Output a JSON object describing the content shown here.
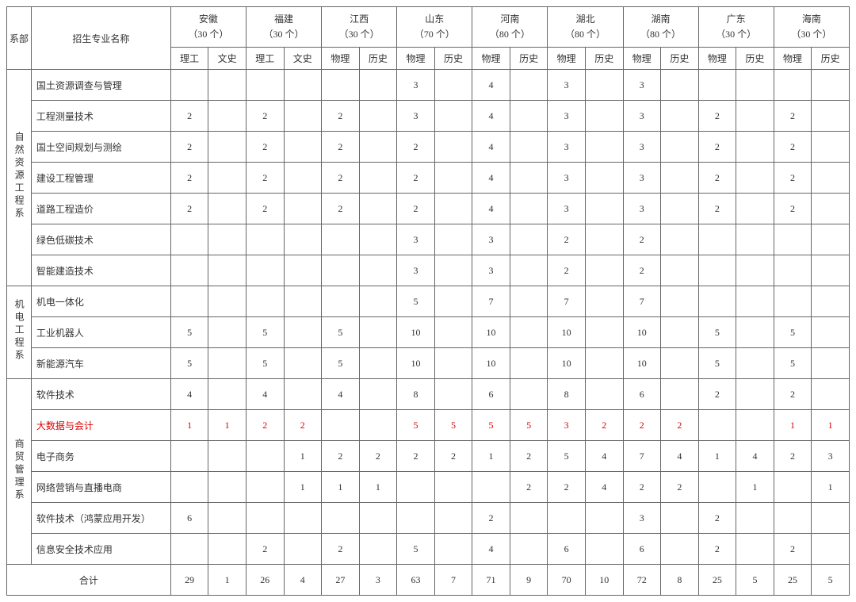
{
  "headers": {
    "dept": "系部",
    "major": "招生专业名称",
    "total": "合计",
    "provinces": [
      {
        "name": "安徽",
        "count": "（30 个）",
        "sub1": "理工",
        "sub2": "文史"
      },
      {
        "name": "福建",
        "count": "（30 个）",
        "sub1": "理工",
        "sub2": "文史"
      },
      {
        "name": "江西",
        "count": "（30 个）",
        "sub1": "物理",
        "sub2": "历史"
      },
      {
        "name": "山东",
        "count": "（70 个）",
        "sub1": "物理",
        "sub2": "历史"
      },
      {
        "name": "河南",
        "count": "（80 个）",
        "sub1": "物理",
        "sub2": "历史"
      },
      {
        "name": "湖北",
        "count": "（80 个）",
        "sub1": "物理",
        "sub2": "历史"
      },
      {
        "name": "湖南",
        "count": "（80 个）",
        "sub1": "物理",
        "sub2": "历史"
      },
      {
        "name": "广东",
        "count": "（30 个）",
        "sub1": "物理",
        "sub2": "历史"
      },
      {
        "name": "海南",
        "count": "（30 个）",
        "sub1": "物理",
        "sub2": "历史"
      }
    ]
  },
  "departments": [
    {
      "name": "自然资源工程系",
      "majors": [
        {
          "name": "国土资源调查与管理",
          "vals": [
            "",
            "",
            "",
            "",
            "",
            "",
            "3",
            "",
            "4",
            "",
            "3",
            "",
            "3",
            "",
            "",
            "",
            "",
            ""
          ]
        },
        {
          "name": "工程测量技术",
          "vals": [
            "2",
            "",
            "2",
            "",
            "2",
            "",
            "3",
            "",
            "4",
            "",
            "3",
            "",
            "3",
            "",
            "2",
            "",
            "2",
            ""
          ]
        },
        {
          "name": "国土空间规划与测绘",
          "vals": [
            "2",
            "",
            "2",
            "",
            "2",
            "",
            "2",
            "",
            "4",
            "",
            "3",
            "",
            "3",
            "",
            "2",
            "",
            "2",
            ""
          ]
        },
        {
          "name": "建设工程管理",
          "vals": [
            "2",
            "",
            "2",
            "",
            "2",
            "",
            "2",
            "",
            "4",
            "",
            "3",
            "",
            "3",
            "",
            "2",
            "",
            "2",
            ""
          ]
        },
        {
          "name": "道路工程造价",
          "vals": [
            "2",
            "",
            "2",
            "",
            "2",
            "",
            "2",
            "",
            "4",
            "",
            "3",
            "",
            "3",
            "",
            "2",
            "",
            "2",
            ""
          ]
        },
        {
          "name": "绿色低碳技术",
          "vals": [
            "",
            "",
            "",
            "",
            "",
            "",
            "3",
            "",
            "3",
            "",
            "2",
            "",
            "2",
            "",
            "",
            "",
            "",
            ""
          ]
        },
        {
          "name": "智能建造技术",
          "vals": [
            "",
            "",
            "",
            "",
            "",
            "",
            "3",
            "",
            "3",
            "",
            "2",
            "",
            "2",
            "",
            "",
            "",
            "",
            ""
          ]
        }
      ]
    },
    {
      "name": "机电工程系",
      "majors": [
        {
          "name": "机电一体化",
          "vals": [
            "",
            "",
            "",
            "",
            "",
            "",
            "5",
            "",
            "7",
            "",
            "7",
            "",
            "7",
            "",
            "",
            "",
            "",
            ""
          ]
        },
        {
          "name": "工业机器人",
          "vals": [
            "5",
            "",
            "5",
            "",
            "5",
            "",
            "10",
            "",
            "10",
            "",
            "10",
            "",
            "10",
            "",
            "5",
            "",
            "5",
            ""
          ]
        },
        {
          "name": "新能源汽车",
          "vals": [
            "5",
            "",
            "5",
            "",
            "5",
            "",
            "10",
            "",
            "10",
            "",
            "10",
            "",
            "10",
            "",
            "5",
            "",
            "5",
            ""
          ]
        }
      ]
    },
    {
      "name": "商贸管理系",
      "majors": [
        {
          "name": "软件技术",
          "vals": [
            "4",
            "",
            "4",
            "",
            "4",
            "",
            "8",
            "",
            "6",
            "",
            "8",
            "",
            "6",
            "",
            "2",
            "",
            "2",
            ""
          ]
        },
        {
          "name": "大数据与会计",
          "red": true,
          "vals": [
            "1",
            "1",
            "2",
            "2",
            "",
            "",
            "5",
            "5",
            "5",
            "5",
            "3",
            "2",
            "2",
            "2",
            "",
            "",
            "1",
            "1"
          ]
        },
        {
          "name": "电子商务",
          "vals": [
            "",
            "",
            "",
            "1",
            "2",
            "2",
            "2",
            "2",
            "1",
            "2",
            "5",
            "4",
            "7",
            "4",
            "1",
            "4",
            "2",
            "3"
          ]
        },
        {
          "name": "网络营销与直播电商",
          "vals": [
            "",
            "",
            "",
            "1",
            "1",
            "1",
            "",
            "",
            "",
            "2",
            "2",
            "4",
            "2",
            "2",
            "",
            "1",
            "",
            "1"
          ]
        },
        {
          "name": "软件技术（鸿蒙应用开发）",
          "vals": [
            "6",
            "",
            "",
            "",
            "",
            "",
            "",
            "",
            "2",
            "",
            "",
            "",
            "3",
            "",
            "2",
            "",
            "",
            ""
          ]
        },
        {
          "name": "信息安全技术应用",
          "vals": [
            "",
            "",
            "2",
            "",
            "2",
            "",
            "5",
            "",
            "4",
            "",
            "6",
            "",
            "6",
            "",
            "2",
            "",
            "2",
            ""
          ]
        }
      ]
    }
  ],
  "totals": [
    "29",
    "1",
    "26",
    "4",
    "27",
    "3",
    "63",
    "7",
    "71",
    "9",
    "70",
    "10",
    "72",
    "8",
    "25",
    "5",
    "25",
    "5"
  ]
}
